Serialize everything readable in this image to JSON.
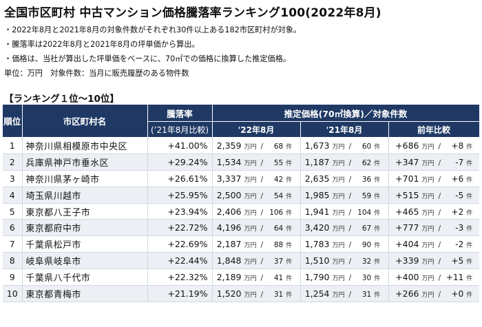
{
  "title": "全国市区町村 中古マンション価格騰落率ランキング100(2022年8月)",
  "notes": [
    "・2022年8月と2021年8月の対象件数がそれぞれ30件以上ある182市区町村が対象。",
    "・騰落率は2022年8月と2021年8月の坪単価から算出。",
    "・価格は、当社が算出した坪単価をベースに、70㎡での価格に換算した推定価格。",
    "単位：万円　対象件数：当月に販売履歴のある物件数"
  ],
  "section_title": "【ランキング１位～10位】",
  "headers": {
    "rank": "順位",
    "city": "市区町村名",
    "rate": "騰落率",
    "rate_sub": "(’21年8月比較)",
    "price_group": "推定価格(70㎡換算)／対象件数",
    "y2022": "'22年8月",
    "y2021": "'21年8月",
    "diff": "前年比較"
  },
  "unit_man": "万円",
  "unit_ken": "件",
  "rows": [
    {
      "rank": "1",
      "city": "神奈川県相模原市中央区",
      "rate": "+41.00%",
      "p22": "2,359",
      "c22": "68",
      "p21": "1,673",
      "c21": "60",
      "dp": "+686",
      "dc": "+8"
    },
    {
      "rank": "2",
      "city": "兵庫県神戸市垂水区",
      "rate": "+29.24%",
      "p22": "1,534",
      "c22": "55",
      "p21": "1,187",
      "c21": "62",
      "dp": "+347",
      "dc": "-7"
    },
    {
      "rank": "3",
      "city": "神奈川県茅ヶ崎市",
      "rate": "+26.61%",
      "p22": "3,337",
      "c22": "42",
      "p21": "2,635",
      "c21": "36",
      "dp": "+701",
      "dc": "+6"
    },
    {
      "rank": "4",
      "city": "埼玉県川越市",
      "rate": "+25.95%",
      "p22": "2,500",
      "c22": "54",
      "p21": "1,985",
      "c21": "59",
      "dp": "+515",
      "dc": "-5"
    },
    {
      "rank": "5",
      "city": "東京都八王子市",
      "rate": "+23.94%",
      "p22": "2,406",
      "c22": "106",
      "p21": "1,941",
      "c21": "104",
      "dp": "+465",
      "dc": "+2"
    },
    {
      "rank": "6",
      "city": "東京都府中市",
      "rate": "+22.72%",
      "p22": "4,196",
      "c22": "64",
      "p21": "3,420",
      "c21": "67",
      "dp": "+777",
      "dc": "-3"
    },
    {
      "rank": "7",
      "city": "千葉県松戸市",
      "rate": "+22.69%",
      "p22": "2,187",
      "c22": "88",
      "p21": "1,783",
      "c21": "90",
      "dp": "+404",
      "dc": "-2"
    },
    {
      "rank": "8",
      "city": "岐阜県岐阜市",
      "rate": "+22.44%",
      "p22": "1,848",
      "c22": "37",
      "p21": "1,510",
      "c21": "32",
      "dp": "+339",
      "dc": "+5"
    },
    {
      "rank": "9",
      "city": "千葉県八千代市",
      "rate": "+22.32%",
      "p22": "2,189",
      "c22": "41",
      "p21": "1,790",
      "c21": "30",
      "dp": "+400",
      "dc": "+11"
    },
    {
      "rank": "10",
      "city": "東京都青梅市",
      "rate": "+21.19%",
      "p22": "1,520",
      "c22": "31",
      "p21": "1,254",
      "c21": "31",
      "dp": "+266",
      "dc": "+0"
    }
  ]
}
